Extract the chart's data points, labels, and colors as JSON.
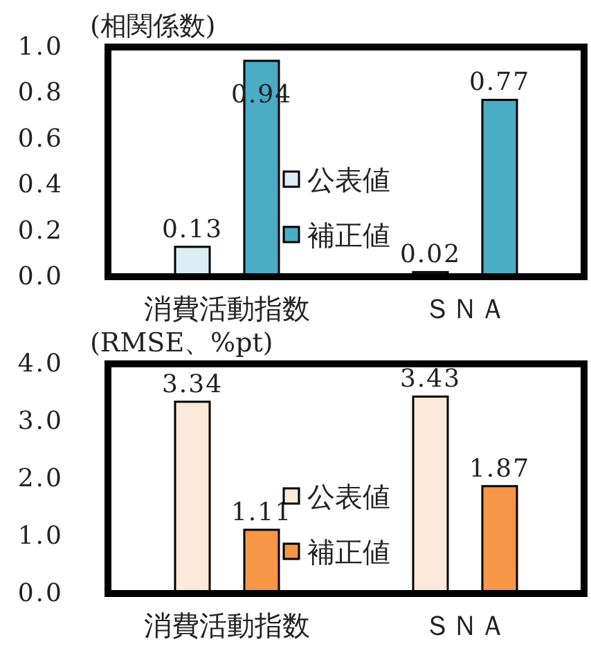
{
  "chart_data": [
    {
      "type": "bar",
      "ylabel": "(相関係数)",
      "categories": [
        "消費活動指数",
        "ＳＮＡ"
      ],
      "series": [
        {
          "name": "公表値",
          "color": "#dbeef3",
          "values": [
            0.13,
            0.02
          ]
        },
        {
          "name": "補正値",
          "color": "#4bacc6",
          "values": [
            0.94,
            0.77
          ]
        }
      ],
      "ylim": [
        0,
        1
      ],
      "yticks": [
        {
          "value": 0,
          "label": "0.0"
        },
        {
          "value": 0.2,
          "label": "0.2"
        },
        {
          "value": 0.4,
          "label": "0.4"
        },
        {
          "value": 0.6,
          "label": "0.6"
        },
        {
          "value": 0.8,
          "label": "0.8"
        },
        {
          "value": 1,
          "label": "1.0"
        }
      ],
      "data_labels": true,
      "legend": "bottom"
    },
    {
      "type": "bar",
      "ylabel": "(RMSE、%pt)",
      "categories": [
        "消費活動指数",
        "ＳＮＡ"
      ],
      "series": [
        {
          "name": "公表値",
          "color": "#fde9d9",
          "values": [
            3.34,
            3.43
          ]
        },
        {
          "name": "補正値",
          "color": "#f79646",
          "values": [
            1.11,
            1.87
          ]
        }
      ],
      "ylim": [
        0,
        4
      ],
      "yticks": [
        {
          "value": 0,
          "label": "0.0"
        },
        {
          "value": 1,
          "label": "1.0"
        },
        {
          "value": 2,
          "label": "2.0"
        },
        {
          "value": 3,
          "label": "3.0"
        },
        {
          "value": 4,
          "label": "4.0"
        }
      ],
      "data_labels": true,
      "legend": "bottom"
    }
  ]
}
